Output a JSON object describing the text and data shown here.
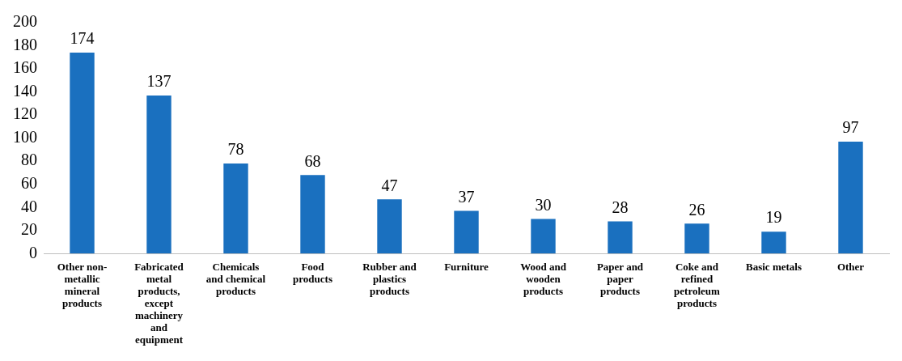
{
  "chart_data": {
    "type": "bar",
    "categories": [
      "Other non-metallic mineral products",
      "Fabricated metal products, except machinery and equipment",
      "Chemicals and chemical products",
      "Food products",
      "Rubber and plastics products",
      "Furniture",
      "Wood and wooden products",
      "Paper and paper products",
      "Coke and refined petroleum products",
      "Basic metals",
      "Other"
    ],
    "values": [
      174,
      137,
      78,
      68,
      47,
      37,
      30,
      28,
      26,
      19,
      97
    ],
    "color": "#1a70bf",
    "ylim": [
      0,
      200
    ],
    "yticks": [
      0,
      20,
      40,
      60,
      80,
      100,
      120,
      140,
      160,
      180,
      200
    ],
    "grid": false,
    "legend": false,
    "data_labels": true
  }
}
